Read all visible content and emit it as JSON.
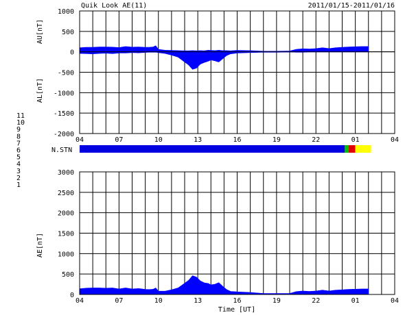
{
  "title": "Quik Look AE(11)",
  "date_range": "2011/01/15-2011/01/16",
  "xlabel": "Time [UT]",
  "x_ticks": [
    "04",
    "07",
    "10",
    "13",
    "16",
    "19",
    "22",
    "01",
    "04"
  ],
  "station_label": "N.STN",
  "station_legend": [
    {
      "label": "11",
      "color": "#22d3d3"
    },
    {
      "label": "10",
      "color": "#e000e0"
    },
    {
      "label": "9",
      "color": "#0000e0"
    },
    {
      "label": "8",
      "color": "#ffff00"
    },
    {
      "label": "7",
      "color": "#00c000"
    },
    {
      "label": "6",
      "color": "#e00000"
    },
    {
      "label": "5",
      "color": "#c8c8c8"
    },
    {
      "label": "4",
      "color": "#808080"
    },
    {
      "label": "3",
      "color": "#00b0b0"
    },
    {
      "label": "2",
      "color": "#c000c0"
    },
    {
      "label": "1",
      "color": "#0000c0"
    }
  ],
  "chart_data": [
    {
      "type": "area",
      "panel": "AU/AL",
      "ylabel_upper": "AU[nT]",
      "ylabel_lower": "AL[nT]",
      "ylim": [
        -2000,
        1000
      ],
      "y_ticks": [
        "1000",
        "500",
        "0",
        "-500",
        "-1000",
        "-1500",
        "-2000"
      ],
      "x_range_hours": [
        4,
        28
      ],
      "grid": true,
      "x": [
        4,
        4.5,
        5,
        5.5,
        6,
        6.5,
        7,
        7.5,
        8,
        8.5,
        9,
        9.3,
        9.6,
        9.8,
        10,
        10.5,
        11,
        11.5,
        12,
        12.3,
        12.6,
        12.9,
        13.2,
        13.5,
        13.8,
        14,
        14.3,
        14.6,
        14.9,
        15.2,
        15.5,
        16,
        17,
        18,
        19,
        20,
        20.5,
        21,
        21.5,
        22,
        22.5,
        23,
        23.5,
        24,
        24.5,
        25,
        25.5,
        26
      ],
      "au": [
        100,
        110,
        110,
        120,
        120,
        115,
        105,
        130,
        115,
        120,
        110,
        110,
        120,
        150,
        60,
        40,
        35,
        30,
        25,
        25,
        30,
        25,
        30,
        25,
        40,
        35,
        30,
        40,
        30,
        30,
        25,
        35,
        30,
        15,
        15,
        20,
        60,
        75,
        70,
        80,
        100,
        80,
        100,
        110,
        120,
        125,
        130,
        130
      ],
      "al": [
        -40,
        -45,
        -50,
        -40,
        -35,
        -45,
        -30,
        -30,
        -20,
        -25,
        -15,
        -10,
        -10,
        -10,
        -20,
        -40,
        -80,
        -130,
        -250,
        -320,
        -430,
        -400,
        -300,
        -260,
        -230,
        -200,
        -220,
        -250,
        -170,
        -90,
        -50,
        -30,
        -20,
        -10,
        -10,
        -5,
        -10,
        -10,
        -5,
        -5,
        -5,
        -5,
        -5,
        -5,
        -5,
        -5,
        -5,
        -5
      ]
    },
    {
      "type": "area",
      "panel": "N.STN",
      "x": [
        4,
        24.2,
        24.5,
        25,
        26.2
      ],
      "values": [
        9,
        7,
        6,
        8,
        7
      ]
    },
    {
      "type": "area",
      "panel": "AE",
      "ylabel": "AE[nT]",
      "ylim": [
        0,
        3000
      ],
      "y_ticks": [
        "3000",
        "2500",
        "2000",
        "1500",
        "1000",
        "500",
        "0"
      ],
      "x_range_hours": [
        4,
        28
      ],
      "grid": true,
      "x": [
        4,
        4.5,
        5,
        5.5,
        6,
        6.5,
        7,
        7.5,
        8,
        8.5,
        9,
        9.3,
        9.6,
        9.8,
        10,
        10.5,
        11,
        11.5,
        12,
        12.3,
        12.6,
        12.9,
        13.2,
        13.5,
        13.8,
        14,
        14.3,
        14.6,
        14.9,
        15.2,
        15.5,
        16,
        17,
        18,
        19,
        20,
        20.5,
        21,
        21.5,
        22,
        22.5,
        23,
        23.5,
        24,
        24.5,
        25,
        25.5,
        26
      ],
      "values": [
        140,
        155,
        160,
        160,
        155,
        160,
        135,
        160,
        135,
        145,
        125,
        120,
        130,
        160,
        80,
        80,
        115,
        160,
        275,
        345,
        460,
        425,
        330,
        285,
        270,
        235,
        250,
        290,
        200,
        120,
        75,
        65,
        50,
        25,
        25,
        25,
        70,
        85,
        75,
        85,
        105,
        85,
        105,
        115,
        125,
        130,
        135,
        135
      ]
    }
  ]
}
